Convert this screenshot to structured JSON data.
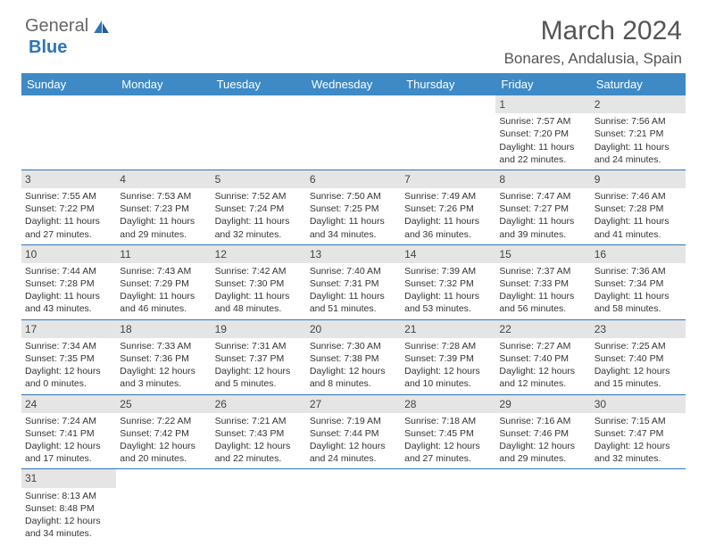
{
  "logo": {
    "text1": "General",
    "text2": "Blue"
  },
  "title": "March 2024",
  "location": "Bonares, Andalusia, Spain",
  "colors": {
    "header_bg": "#3d8ac7",
    "header_fg": "#ffffff",
    "divider": "#2e75b6",
    "daynum_bg": "#e5e5e5",
    "text": "#333333",
    "logo_blue": "#2e75b6"
  },
  "day_names": [
    "Sunday",
    "Monday",
    "Tuesday",
    "Wednesday",
    "Thursday",
    "Friday",
    "Saturday"
  ],
  "days": {
    "1": {
      "sunrise": "7:57 AM",
      "sunset": "7:20 PM",
      "daylight": "11 hours and 22 minutes."
    },
    "2": {
      "sunrise": "7:56 AM",
      "sunset": "7:21 PM",
      "daylight": "11 hours and 24 minutes."
    },
    "3": {
      "sunrise": "7:55 AM",
      "sunset": "7:22 PM",
      "daylight": "11 hours and 27 minutes."
    },
    "4": {
      "sunrise": "7:53 AM",
      "sunset": "7:23 PM",
      "daylight": "11 hours and 29 minutes."
    },
    "5": {
      "sunrise": "7:52 AM",
      "sunset": "7:24 PM",
      "daylight": "11 hours and 32 minutes."
    },
    "6": {
      "sunrise": "7:50 AM",
      "sunset": "7:25 PM",
      "daylight": "11 hours and 34 minutes."
    },
    "7": {
      "sunrise": "7:49 AM",
      "sunset": "7:26 PM",
      "daylight": "11 hours and 36 minutes."
    },
    "8": {
      "sunrise": "7:47 AM",
      "sunset": "7:27 PM",
      "daylight": "11 hours and 39 minutes."
    },
    "9": {
      "sunrise": "7:46 AM",
      "sunset": "7:28 PM",
      "daylight": "11 hours and 41 minutes."
    },
    "10": {
      "sunrise": "7:44 AM",
      "sunset": "7:28 PM",
      "daylight": "11 hours and 43 minutes."
    },
    "11": {
      "sunrise": "7:43 AM",
      "sunset": "7:29 PM",
      "daylight": "11 hours and 46 minutes."
    },
    "12": {
      "sunrise": "7:42 AM",
      "sunset": "7:30 PM",
      "daylight": "11 hours and 48 minutes."
    },
    "13": {
      "sunrise": "7:40 AM",
      "sunset": "7:31 PM",
      "daylight": "11 hours and 51 minutes."
    },
    "14": {
      "sunrise": "7:39 AM",
      "sunset": "7:32 PM",
      "daylight": "11 hours and 53 minutes."
    },
    "15": {
      "sunrise": "7:37 AM",
      "sunset": "7:33 PM",
      "daylight": "11 hours and 56 minutes."
    },
    "16": {
      "sunrise": "7:36 AM",
      "sunset": "7:34 PM",
      "daylight": "11 hours and 58 minutes."
    },
    "17": {
      "sunrise": "7:34 AM",
      "sunset": "7:35 PM",
      "daylight": "12 hours and 0 minutes."
    },
    "18": {
      "sunrise": "7:33 AM",
      "sunset": "7:36 PM",
      "daylight": "12 hours and 3 minutes."
    },
    "19": {
      "sunrise": "7:31 AM",
      "sunset": "7:37 PM",
      "daylight": "12 hours and 5 minutes."
    },
    "20": {
      "sunrise": "7:30 AM",
      "sunset": "7:38 PM",
      "daylight": "12 hours and 8 minutes."
    },
    "21": {
      "sunrise": "7:28 AM",
      "sunset": "7:39 PM",
      "daylight": "12 hours and 10 minutes."
    },
    "22": {
      "sunrise": "7:27 AM",
      "sunset": "7:40 PM",
      "daylight": "12 hours and 12 minutes."
    },
    "23": {
      "sunrise": "7:25 AM",
      "sunset": "7:40 PM",
      "daylight": "12 hours and 15 minutes."
    },
    "24": {
      "sunrise": "7:24 AM",
      "sunset": "7:41 PM",
      "daylight": "12 hours and 17 minutes."
    },
    "25": {
      "sunrise": "7:22 AM",
      "sunset": "7:42 PM",
      "daylight": "12 hours and 20 minutes."
    },
    "26": {
      "sunrise": "7:21 AM",
      "sunset": "7:43 PM",
      "daylight": "12 hours and 22 minutes."
    },
    "27": {
      "sunrise": "7:19 AM",
      "sunset": "7:44 PM",
      "daylight": "12 hours and 24 minutes."
    },
    "28": {
      "sunrise": "7:18 AM",
      "sunset": "7:45 PM",
      "daylight": "12 hours and 27 minutes."
    },
    "29": {
      "sunrise": "7:16 AM",
      "sunset": "7:46 PM",
      "daylight": "12 hours and 29 minutes."
    },
    "30": {
      "sunrise": "7:15 AM",
      "sunset": "7:47 PM",
      "daylight": "12 hours and 32 minutes."
    },
    "31": {
      "sunrise": "8:13 AM",
      "sunset": "8:48 PM",
      "daylight": "12 hours and 34 minutes."
    }
  },
  "labels": {
    "sunrise": "Sunrise:",
    "sunset": "Sunset:",
    "daylight": "Daylight:"
  },
  "grid": [
    [
      null,
      null,
      null,
      null,
      null,
      "1",
      "2"
    ],
    [
      "3",
      "4",
      "5",
      "6",
      "7",
      "8",
      "9"
    ],
    [
      "10",
      "11",
      "12",
      "13",
      "14",
      "15",
      "16"
    ],
    [
      "17",
      "18",
      "19",
      "20",
      "21",
      "22",
      "23"
    ],
    [
      "24",
      "25",
      "26",
      "27",
      "28",
      "29",
      "30"
    ],
    [
      "31",
      null,
      null,
      null,
      null,
      null,
      null
    ]
  ]
}
